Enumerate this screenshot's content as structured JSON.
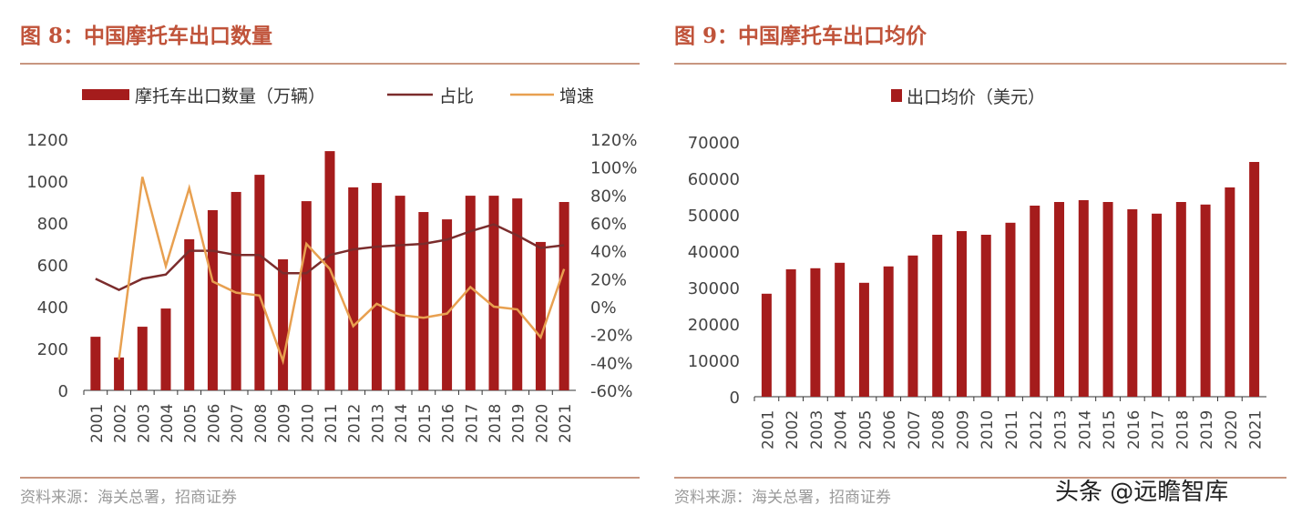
{
  "left": {
    "title": "图 8：中国摩托车出口数量",
    "source": "资料来源：海关总署，招商证券"
  },
  "right": {
    "title": "图 9：中国摩托车出口均价",
    "source": "资料来源：海关总署，招商证券"
  },
  "watermark": "头条 @远瞻智库",
  "colors": {
    "bar": "#a51c1c",
    "share": "#7b2c2c",
    "growth": "#e8a050"
  },
  "chart_data": [
    {
      "type": "bar+line",
      "categories": [
        "2001",
        "2002",
        "2003",
        "2004",
        "2005",
        "2006",
        "2007",
        "2008",
        "2009",
        "2010",
        "2011",
        "2012",
        "2013",
        "2014",
        "2015",
        "2016",
        "2017",
        "2018",
        "2019",
        "2020",
        "2021"
      ],
      "series": [
        {
          "name": "摩托车出口数量（万辆）",
          "type": "bar",
          "axis": "left",
          "values": [
            256,
            157,
            304,
            391,
            722,
            861,
            948,
            1030,
            626,
            904,
            1143,
            970,
            991,
            930,
            852,
            817,
            930,
            930,
            917,
            709,
            900
          ]
        },
        {
          "name": "占比",
          "type": "line",
          "axis": "right",
          "values": [
            20,
            12,
            20,
            23,
            40,
            40,
            37,
            37,
            24,
            24,
            37,
            41,
            43,
            44,
            45,
            48,
            54,
            59,
            51,
            42,
            44
          ]
        },
        {
          "name": "增速",
          "type": "line",
          "axis": "right",
          "values": [
            null,
            -38,
            93,
            29,
            85,
            18,
            10,
            8,
            -39,
            45,
            27,
            -14,
            2,
            -6,
            -8,
            -5,
            14,
            0,
            -2,
            -22,
            27
          ]
        }
      ],
      "ylim_left": [
        0,
        1200
      ],
      "yticks_left": [
        "0",
        "200",
        "400",
        "600",
        "800",
        "1000",
        "1200"
      ],
      "ylim_right": [
        -60,
        120
      ],
      "yticks_right": [
        "-60%",
        "-40%",
        "-20%",
        "0%",
        "20%",
        "40%",
        "60%",
        "80%",
        "100%",
        "120%"
      ],
      "legend": "top",
      "grid": false
    },
    {
      "type": "bar",
      "categories": [
        "2001",
        "2002",
        "2003",
        "2004",
        "2005",
        "2006",
        "2007",
        "2008",
        "2009",
        "2010",
        "2011",
        "2012",
        "2013",
        "2014",
        "2015",
        "2016",
        "2017",
        "2018",
        "2019",
        "2020",
        "2021"
      ],
      "series": [
        {
          "name": "出口均价（美元）",
          "values": [
            28300,
            35000,
            35300,
            36800,
            31300,
            35800,
            38800,
            44500,
            45500,
            44500,
            47800,
            52500,
            53500,
            54000,
            53500,
            51500,
            50300,
            53500,
            52800,
            57500,
            64500
          ]
        }
      ],
      "ylim": [
        0,
        70000
      ],
      "yticks": [
        "0",
        "10000",
        "20000",
        "30000",
        "40000",
        "50000",
        "60000",
        "70000"
      ],
      "legend": "top",
      "grid": false
    }
  ]
}
